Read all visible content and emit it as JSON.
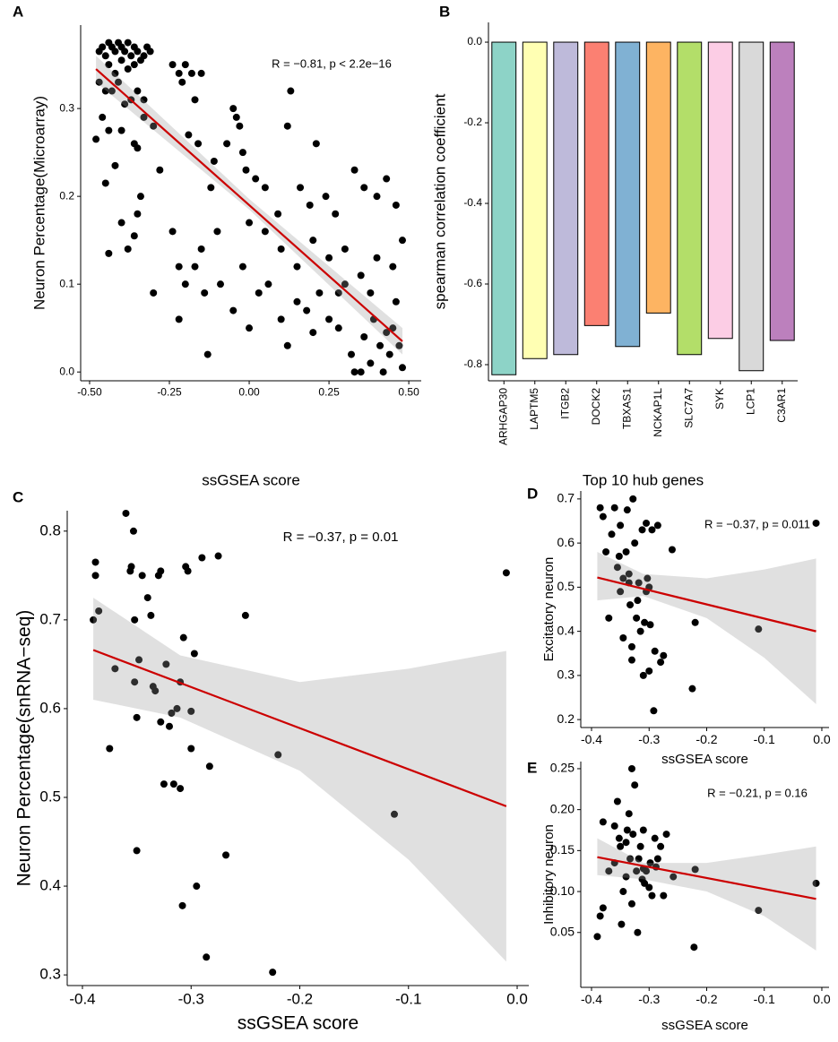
{
  "chart_data": [
    {
      "type": "scatter",
      "panel": "A",
      "annotation": "R = −0.81, p < 2.2e−16",
      "xlabel": "ssGSEA score",
      "ylabel": "Neuron Percentage(Microarray)",
      "color": "#000000",
      "xlim": [
        -0.528,
        0.539
      ],
      "ylim": [
        -0.01,
        0.395
      ],
      "xticks": [
        {
          "value": -0.5,
          "label": "-0.50"
        },
        {
          "value": -0.25,
          "label": "-0.25"
        },
        {
          "value": 0,
          "label": "0.00"
        },
        {
          "value": 0.25,
          "label": "0.25"
        },
        {
          "value": 0.5,
          "label": "0.50"
        }
      ],
      "yticks": [
        {
          "value": 0,
          "label": "0.0"
        },
        0.1,
        0.2,
        0.3
      ],
      "x": [
        -0.47,
        -0.46,
        -0.45,
        -0.44,
        -0.43,
        -0.42,
        -0.41,
        -0.4,
        -0.39,
        -0.38,
        -0.37,
        -0.36,
        -0.35,
        -0.34,
        -0.33,
        -0.32,
        -0.31,
        -0.4,
        -0.44,
        -0.38,
        -0.36,
        -0.42,
        -0.47,
        -0.45,
        -0.43,
        -0.41,
        -0.39,
        -0.37,
        -0.35,
        -0.33,
        -0.46,
        -0.44,
        -0.4,
        -0.36,
        -0.35,
        -0.48,
        -0.42,
        -0.45,
        -0.33,
        -0.3,
        -0.28,
        -0.24,
        -0.22,
        -0.2,
        -0.21,
        -0.18,
        -0.17,
        -0.15,
        -0.19,
        -0.16,
        -0.11,
        -0.12,
        -0.05,
        -0.04,
        -0.03,
        -0.02,
        -0.07,
        -0.01,
        0.02,
        0.05,
        0.13,
        0.12,
        0.21,
        0.09,
        0.16,
        0.19,
        0.24,
        0.27,
        0.33,
        0.36,
        0.4,
        0.43,
        0.46,
        -0.4,
        -0.38,
        -0.34,
        -0.35,
        -0.36,
        -0.44,
        -0.3,
        -0.22,
        -0.2,
        -0.13,
        -0.14,
        -0.09,
        -0.05,
        -0.02,
        0.0,
        0.03,
        0.06,
        0.1,
        0.12,
        0.15,
        0.18,
        0.2,
        0.22,
        0.25,
        0.28,
        0.3,
        0.32,
        0.33,
        0.35,
        0.36,
        0.38,
        0.39,
        0.41,
        0.42,
        0.44,
        0.45,
        0.46,
        0.47,
        0.48,
        0.45,
        0.48,
        0.4,
        0.35,
        0.3,
        0.25,
        0.2,
        0.15,
        0.1,
        0.05,
        -0.1,
        -0.22,
        -0.24,
        -0.17,
        -0.15,
        0.0,
        0.28,
        0.38,
        0.43
      ],
      "values": [
        0.365,
        0.37,
        0.36,
        0.375,
        0.37,
        0.365,
        0.375,
        0.37,
        0.365,
        0.375,
        0.36,
        0.37,
        0.365,
        0.355,
        0.36,
        0.37,
        0.365,
        0.355,
        0.35,
        0.345,
        0.35,
        0.34,
        0.33,
        0.32,
        0.32,
        0.33,
        0.305,
        0.31,
        0.32,
        0.31,
        0.29,
        0.275,
        0.275,
        0.26,
        0.255,
        0.265,
        0.235,
        0.215,
        0.29,
        0.28,
        0.23,
        0.35,
        0.34,
        0.35,
        0.33,
        0.34,
        0.31,
        0.34,
        0.27,
        0.26,
        0.24,
        0.21,
        0.3,
        0.29,
        0.28,
        0.25,
        0.26,
        0.23,
        0.22,
        0.21,
        0.32,
        0.28,
        0.26,
        0.18,
        0.21,
        0.19,
        0.2,
        0.18,
        0.23,
        0.21,
        0.2,
        0.22,
        0.19,
        0.17,
        0.14,
        0.2,
        0.18,
        0.155,
        0.135,
        0.09,
        0.06,
        0.1,
        0.02,
        0.09,
        0.1,
        0.07,
        0.12,
        0.05,
        0.09,
        0.1,
        0.06,
        0.03,
        0.08,
        0.07,
        0.045,
        0.09,
        0.06,
        0.05,
        0.1,
        0.02,
        0.0,
        0.0,
        0.04,
        0.01,
        0.06,
        0.03,
        0.0,
        0.02,
        0.05,
        0.08,
        0.03,
        0.005,
        0.12,
        0.15,
        0.13,
        0.11,
        0.14,
        0.13,
        0.15,
        0.12,
        0.14,
        0.16,
        0.16,
        0.12,
        0.16,
        0.12,
        0.14,
        0.17,
        0.09,
        0.09,
        0.045
      ],
      "fit": {
        "color": "#cc0000",
        "x": [
          -0.48,
          0.48
        ],
        "values": [
          0.345,
          0.035
        ]
      },
      "band": {
        "x": [
          -0.48,
          0,
          0.48
        ],
        "lower": [
          0.33,
          0.185,
          0.02
        ],
        "upper": [
          0.36,
          0.197,
          0.05
        ]
      }
    },
    {
      "type": "bar",
      "panel": "B",
      "xlabel": "Top 10 hub genes",
      "ylabel": "spearman correlation coefficient",
      "categories": [
        "ARHGAP30",
        "LAPTM5",
        "ITGB2",
        "DOCK2",
        "TBXAS1",
        "NCKAP1L",
        "SLC7A7",
        "SYK",
        "LCP1",
        "C3AR1"
      ],
      "values": [
        -0.825,
        -0.785,
        -0.775,
        -0.703,
        -0.755,
        -0.672,
        -0.775,
        -0.735,
        -0.815,
        -0.74
      ],
      "colors": [
        "#8DD3C7",
        "#FFFFB3",
        "#BEBADA",
        "#FB8072",
        "#80B1D3",
        "#FDB462",
        "#B3DE69",
        "#FCCDE5",
        "#D9D9D9",
        "#BC80BD"
      ],
      "ylim": [
        -0.84,
        0.049
      ],
      "yticks": [
        {
          "value": 0,
          "label": "0.0"
        },
        -0.2,
        -0.4,
        -0.6,
        -0.8
      ]
    },
    {
      "type": "scatter",
      "panel": "C",
      "annotation": "R = −0.37, p = 0.01",
      "xlabel": "ssGSEA score",
      "ylabel": "Neuron Percentage(snRNA−seq)",
      "color": "#000000",
      "xlim": [
        -0.414,
        0.0107
      ],
      "ylim": [
        0.288,
        0.823
      ],
      "xticks": [
        -0.4,
        -0.3,
        -0.2,
        -0.1,
        {
          "value": 0,
          "label": "0.0"
        }
      ],
      "yticks": [
        0.3,
        0.4,
        0.5,
        0.6,
        0.7,
        0.8
      ],
      "x": [
        -0.39,
        -0.388,
        -0.388,
        -0.385,
        -0.375,
        -0.37,
        -0.36,
        -0.356,
        -0.355,
        -0.353,
        -0.352,
        -0.352,
        -0.35,
        -0.35,
        -0.348,
        -0.345,
        -0.34,
        -0.337,
        -0.335,
        -0.333,
        -0.33,
        -0.328,
        -0.328,
        -0.325,
        -0.323,
        -0.32,
        -0.318,
        -0.316,
        -0.313,
        -0.31,
        -0.31,
        -0.307,
        -0.305,
        -0.303,
        -0.3,
        -0.3,
        -0.297,
        -0.295,
        -0.29,
        -0.286,
        -0.283,
        -0.275,
        -0.268,
        -0.25,
        -0.308,
        -0.225,
        -0.22,
        -0.113,
        -0.01
      ],
      "values": [
        0.7,
        0.765,
        0.75,
        0.71,
        0.555,
        0.645,
        0.82,
        0.755,
        0.76,
        0.8,
        0.7,
        0.63,
        0.59,
        0.44,
        0.655,
        0.75,
        0.725,
        0.705,
        0.625,
        0.62,
        0.75,
        0.755,
        0.585,
        0.515,
        0.65,
        0.58,
        0.595,
        0.515,
        0.6,
        0.51,
        0.63,
        0.68,
        0.76,
        0.755,
        0.555,
        0.597,
        0.662,
        0.4,
        0.77,
        0.32,
        0.535,
        0.772,
        0.435,
        0.705,
        0.378,
        0.303,
        0.548,
        0.481,
        0.753
      ],
      "fit": {
        "color": "#cc0000",
        "x": [
          -0.39,
          -0.01
        ],
        "values": [
          0.666,
          0.49
        ]
      },
      "band": {
        "x": [
          -0.39,
          -0.31,
          -0.2,
          -0.1,
          -0.01
        ],
        "lower": [
          0.61,
          0.59,
          0.53,
          0.43,
          0.315
        ],
        "upper": [
          0.725,
          0.66,
          0.63,
          0.645,
          0.665
        ]
      }
    },
    {
      "type": "scatter",
      "panel": "D",
      "annotation": "R = −0.37, p = 0.011",
      "xlabel": "ssGSEA score",
      "ylabel": "Excitatory neuron",
      "color": "#000000",
      "xlim": [
        -0.4187,
        0.0125
      ],
      "ylim": [
        0.182,
        0.718
      ],
      "xticks": [
        -0.4,
        -0.3,
        -0.2,
        -0.1,
        {
          "value": 0,
          "label": "0.0"
        }
      ],
      "yticks": [
        0.2,
        0.3,
        0.4,
        0.5,
        0.6,
        0.7
      ],
      "x": [
        -0.385,
        -0.38,
        -0.375,
        -0.37,
        -0.365,
        -0.36,
        -0.355,
        -0.35,
        -0.352,
        -0.345,
        -0.35,
        -0.345,
        -0.34,
        -0.338,
        -0.335,
        -0.333,
        -0.33,
        -0.33,
        -0.328,
        -0.325,
        -0.322,
        -0.32,
        -0.318,
        -0.315,
        -0.312,
        -0.31,
        -0.308,
        -0.305,
        -0.305,
        -0.303,
        -0.3,
        -0.298,
        -0.295,
        -0.292,
        -0.29,
        -0.285,
        -0.28,
        -0.275,
        -0.26,
        -0.225,
        -0.22,
        -0.11,
        -0.01,
        -0.335,
        -0.3
      ],
      "values": [
        0.68,
        0.66,
        0.58,
        0.43,
        0.62,
        0.68,
        0.545,
        0.64,
        0.57,
        0.52,
        0.49,
        0.385,
        0.58,
        0.675,
        0.53,
        0.46,
        0.365,
        0.335,
        0.7,
        0.6,
        0.43,
        0.47,
        0.51,
        0.4,
        0.63,
        0.3,
        0.42,
        0.645,
        0.49,
        0.52,
        0.31,
        0.415,
        0.63,
        0.22,
        0.355,
        0.64,
        0.33,
        0.345,
        0.585,
        0.27,
        0.42,
        0.405,
        0.645,
        0.51,
        0.5
      ],
      "fit": {
        "color": "#cc0000",
        "x": [
          -0.39,
          -0.01
        ],
        "values": [
          0.522,
          0.4
        ]
      },
      "band": {
        "x": [
          -0.39,
          -0.31,
          -0.2,
          -0.1,
          -0.01
        ],
        "lower": [
          0.47,
          0.48,
          0.43,
          0.34,
          0.235
        ],
        "upper": [
          0.58,
          0.53,
          0.52,
          0.54,
          0.565
        ]
      }
    },
    {
      "type": "scatter",
      "panel": "E",
      "annotation": "R = −0.21, p = 0.16",
      "xlabel": "ssGSEA score",
      "ylabel": "Inhibitory neuron",
      "color": "#000000",
      "xlim": [
        -0.4187,
        0.0125
      ],
      "ylim": [
        -0.017,
        0.2587
      ],
      "xticks": [
        -0.4,
        -0.3,
        -0.2,
        -0.1,
        {
          "value": 0,
          "label": "0.0"
        }
      ],
      "yticks": [
        0.05,
        {
          "value": 0.1,
          "label": "0.10"
        },
        0.15,
        {
          "value": 0.2,
          "label": "0.20"
        },
        0.25
      ],
      "x": [
        -0.39,
        -0.385,
        -0.38,
        -0.38,
        -0.37,
        -0.36,
        -0.36,
        -0.355,
        -0.352,
        -0.35,
        -0.348,
        -0.345,
        -0.34,
        -0.338,
        -0.335,
        -0.333,
        -0.33,
        -0.33,
        -0.328,
        -0.325,
        -0.322,
        -0.32,
        -0.318,
        -0.315,
        -0.312,
        -0.31,
        -0.308,
        -0.305,
        -0.3,
        -0.298,
        -0.295,
        -0.29,
        -0.288,
        -0.285,
        -0.28,
        -0.275,
        -0.27,
        -0.258,
        -0.222,
        -0.22,
        -0.11,
        -0.01,
        -0.34,
        -0.31
      ],
      "values": [
        0.045,
        0.07,
        0.185,
        0.08,
        0.125,
        0.135,
        0.18,
        0.21,
        0.165,
        0.155,
        0.06,
        0.1,
        0.16,
        0.175,
        0.195,
        0.14,
        0.25,
        0.085,
        0.17,
        0.23,
        0.125,
        0.05,
        0.14,
        0.155,
        0.115,
        0.175,
        0.11,
        0.125,
        0.105,
        0.135,
        0.095,
        0.165,
        0.13,
        0.14,
        0.155,
        0.095,
        0.17,
        0.118,
        0.032,
        0.127,
        0.077,
        0.11,
        0.118,
        0.128
      ],
      "fit": {
        "color": "#cc0000",
        "x": [
          -0.39,
          -0.01
        ],
        "values": [
          0.142,
          0.091
        ]
      },
      "band": {
        "x": [
          -0.39,
          -0.31,
          -0.2,
          -0.1,
          -0.01
        ],
        "lower": [
          0.12,
          0.115,
          0.1,
          0.07,
          0.028
        ],
        "upper": [
          0.165,
          0.135,
          0.135,
          0.145,
          0.155
        ]
      }
    }
  ]
}
